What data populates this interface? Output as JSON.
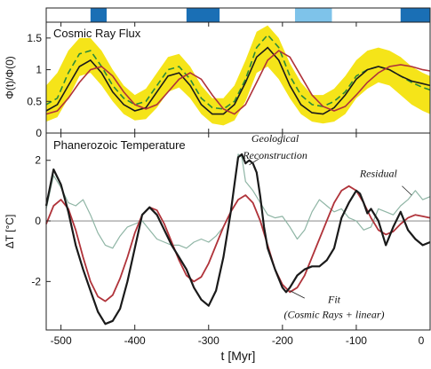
{
  "chart_data": [
    {
      "type": "line",
      "title": "Cosmic Ray Flux",
      "ylabel": "Φ(t)/Φ(0)",
      "xlabel": "",
      "xlim": [
        -520,
        0
      ],
      "ylim": [
        0,
        1.75
      ],
      "yticks": [
        "0",
        "0.5",
        "1",
        "1.5"
      ],
      "grid": false,
      "band": {
        "color": "#f5e419",
        "x": [
          -520,
          -505,
          -490,
          -475,
          -460,
          -445,
          -430,
          -415,
          -400,
          -385,
          -370,
          -355,
          -340,
          -325,
          -310,
          -295,
          -280,
          -265,
          -250,
          -235,
          -220,
          -205,
          -190,
          -175,
          -160,
          -145,
          -130,
          -115,
          -100,
          -85,
          -70,
          -55,
          -40,
          -25,
          -10,
          0
        ],
        "lower": [
          0.18,
          0.25,
          0.55,
          0.9,
          0.95,
          0.75,
          0.5,
          0.3,
          0.2,
          0.22,
          0.4,
          0.65,
          0.72,
          0.55,
          0.3,
          0.15,
          0.12,
          0.2,
          0.5,
          0.95,
          1.05,
          0.85,
          0.55,
          0.3,
          0.18,
          0.15,
          0.18,
          0.3,
          0.55,
          0.7,
          0.8,
          0.75,
          0.6,
          0.45,
          0.35,
          0.3
        ],
        "upper": [
          0.75,
          0.95,
          1.3,
          1.5,
          1.5,
          1.3,
          1.0,
          0.75,
          0.6,
          0.7,
          0.95,
          1.2,
          1.25,
          1.05,
          0.75,
          0.55,
          0.55,
          0.75,
          1.15,
          1.6,
          1.7,
          1.5,
          1.1,
          0.8,
          0.6,
          0.6,
          0.7,
          0.9,
          1.15,
          1.3,
          1.35,
          1.3,
          1.2,
          1.05,
          0.95,
          0.9
        ]
      },
      "series": [
        {
          "color": "#2a8a3a",
          "style": "dashed",
          "x": [
            -520,
            -505,
            -490,
            -475,
            -460,
            -445,
            -430,
            -415,
            -400,
            -385,
            -370,
            -355,
            -340,
            -325,
            -310,
            -295,
            -280,
            -265,
            -250,
            -235,
            -220,
            -205,
            -190,
            -175,
            -160,
            -145,
            -130,
            -115,
            -100,
            -85,
            -70,
            -55,
            -40,
            -25,
            -10,
            0
          ],
          "values": [
            0.45,
            0.55,
            0.95,
            1.25,
            1.3,
            1.05,
            0.75,
            0.55,
            0.45,
            0.5,
            0.75,
            1.0,
            1.05,
            0.85,
            0.55,
            0.4,
            0.38,
            0.5,
            0.85,
            1.35,
            1.55,
            1.35,
            0.9,
            0.6,
            0.45,
            0.42,
            0.5,
            0.65,
            0.9,
            1.0,
            1.05,
            1.0,
            0.9,
            0.8,
            0.72,
            0.68
          ]
        },
        {
          "color": "#1a1a1a",
          "style": "solid",
          "x": [
            -520,
            -505,
            -490,
            -475,
            -460,
            -445,
            -430,
            -415,
            -400,
            -385,
            -370,
            -355,
            -340,
            -325,
            -310,
            -295,
            -280,
            -265,
            -250,
            -235,
            -220,
            -205,
            -190,
            -175,
            -160,
            -145,
            -130,
            -115,
            -100,
            -85,
            -70,
            -55,
            -40,
            -25,
            -10,
            0
          ],
          "values": [
            0.35,
            0.45,
            0.75,
            1.05,
            1.15,
            0.95,
            0.65,
            0.45,
            0.35,
            0.4,
            0.65,
            0.9,
            0.95,
            0.75,
            0.45,
            0.3,
            0.3,
            0.45,
            0.8,
            1.2,
            1.35,
            1.15,
            0.75,
            0.45,
            0.32,
            0.3,
            0.4,
            0.6,
            0.85,
            1.0,
            1.05,
            1.0,
            0.9,
            0.82,
            0.78,
            0.75
          ]
        },
        {
          "color": "#b0333a",
          "style": "solid",
          "x": [
            -520,
            -505,
            -490,
            -475,
            -460,
            -445,
            -430,
            -415,
            -400,
            -385,
            -370,
            -355,
            -340,
            -325,
            -310,
            -295,
            -280,
            -265,
            -250,
            -235,
            -220,
            -205,
            -190,
            -175,
            -160,
            -145,
            -130,
            -115,
            -100,
            -85,
            -70,
            -55,
            -40,
            -25,
            -10,
            0
          ],
          "values": [
            0.3,
            0.35,
            0.55,
            0.8,
            1.0,
            1.05,
            0.9,
            0.65,
            0.45,
            0.38,
            0.45,
            0.65,
            0.85,
            0.95,
            0.85,
            0.6,
            0.38,
            0.3,
            0.45,
            0.8,
            1.15,
            1.3,
            1.2,
            0.9,
            0.6,
            0.42,
            0.35,
            0.42,
            0.6,
            0.8,
            0.95,
            1.05,
            1.08,
            1.05,
            1.0,
            0.98
          ]
        }
      ],
      "top_bar": {
        "segments": [
          {
            "from": -520,
            "to": -460,
            "color": "#ffffff"
          },
          {
            "from": -460,
            "to": -438,
            "color": "#1a6fb5"
          },
          {
            "from": -438,
            "to": -330,
            "color": "#ffffff"
          },
          {
            "from": -330,
            "to": -285,
            "color": "#1a6fb5"
          },
          {
            "from": -285,
            "to": -183,
            "color": "#ffffff"
          },
          {
            "from": -183,
            "to": -133,
            "color": "#7ec3ea"
          },
          {
            "from": -133,
            "to": -40,
            "color": "#ffffff"
          },
          {
            "from": -40,
            "to": 0,
            "color": "#1a6fb5"
          }
        ]
      }
    },
    {
      "type": "line",
      "title": "Phanerozoic Temperature",
      "ylabel": "ΔT [°C]",
      "xlabel": "t [Myr]",
      "xlim": [
        -520,
        0
      ],
      "ylim": [
        -3.6,
        2.9
      ],
      "xticks": [
        "-500",
        "-400",
        "-300",
        "-200",
        "-100",
        "0"
      ],
      "yticks": [
        "-2",
        "0",
        "2"
      ],
      "zero_line": true,
      "annotations": [
        {
          "text": "Geological",
          "x": -210,
          "y": 2.6
        },
        {
          "text": "Reconstruction",
          "x": -210,
          "y": 2.05
        },
        {
          "text": "Residual",
          "x": -70,
          "y": 1.45
        },
        {
          "text": "Fit",
          "x": -130,
          "y": -2.7
        },
        {
          "text": "(Cosmic Rays + linear)",
          "x": -130,
          "y": -3.2
        }
      ],
      "series": [
        {
          "name": "Geological Reconstruction",
          "color": "#1a1a1a",
          "width": 2.2,
          "x": [
            -520,
            -510,
            -500,
            -490,
            -480,
            -470,
            -460,
            -450,
            -440,
            -430,
            -420,
            -410,
            -400,
            -390,
            -380,
            -370,
            -360,
            -350,
            -340,
            -330,
            -320,
            -310,
            -300,
            -290,
            -280,
            -270,
            -265,
            -260,
            -255,
            -250,
            -245,
            -240,
            -235,
            -230,
            -225,
            -220,
            -210,
            -200,
            -195,
            -190,
            -180,
            -170,
            -160,
            -150,
            -140,
            -130,
            -120,
            -110,
            -100,
            -95,
            -90,
            -85,
            -80,
            -70,
            -60,
            -50,
            -40,
            -30,
            -20,
            -10,
            0
          ],
          "values": [
            0.5,
            1.7,
            1.2,
            0.3,
            -0.8,
            -1.6,
            -2.3,
            -3.0,
            -3.4,
            -3.3,
            -2.9,
            -2.0,
            -0.9,
            0.2,
            0.45,
            0.2,
            -0.3,
            -0.8,
            -1.2,
            -1.6,
            -2.2,
            -2.6,
            -2.8,
            -2.3,
            -1.2,
            0.3,
            1.2,
            2.1,
            2.2,
            1.9,
            2.0,
            1.9,
            1.6,
            0.8,
            -0.2,
            -0.9,
            -1.6,
            -2.2,
            -2.35,
            -2.2,
            -1.8,
            -1.6,
            -1.5,
            -1.5,
            -1.3,
            -0.9,
            0.1,
            0.6,
            1.0,
            0.9,
            0.6,
            0.25,
            0.4,
            0.0,
            -0.8,
            -0.2,
            0.3,
            -0.3,
            -0.6,
            -0.8,
            -0.7
          ]
        },
        {
          "name": "Residual",
          "color": "#8fb5a5",
          "width": 1.2,
          "x": [
            -520,
            -510,
            -500,
            -490,
            -480,
            -470,
            -460,
            -450,
            -440,
            -430,
            -420,
            -410,
            -400,
            -390,
            -380,
            -370,
            -360,
            -350,
            -340,
            -330,
            -320,
            -310,
            -300,
            -290,
            -280,
            -270,
            -265,
            -260,
            -255,
            -250,
            -240,
            -230,
            -220,
            -210,
            -200,
            -190,
            -180,
            -170,
            -160,
            -150,
            -140,
            -130,
            -120,
            -110,
            -100,
            -90,
            -80,
            -70,
            -60,
            -50,
            -40,
            -30,
            -20,
            -10,
            0
          ],
          "values": [
            0.4,
            1.5,
            1.1,
            0.6,
            0.5,
            0.7,
            0.2,
            -0.4,
            -0.8,
            -0.9,
            -0.5,
            -0.2,
            -0.1,
            0.0,
            -0.3,
            -0.6,
            -0.7,
            -0.8,
            -0.8,
            -0.9,
            -0.7,
            -0.6,
            -0.7,
            -0.5,
            -0.2,
            0.3,
            1.2,
            2.2,
            2.1,
            1.3,
            1.0,
            0.6,
            0.2,
            0.1,
            0.15,
            -0.2,
            -0.6,
            -0.3,
            0.3,
            0.7,
            0.5,
            0.3,
            0.4,
            0.1,
            0.0,
            -0.3,
            -0.2,
            0.4,
            0.3,
            0.2,
            0.5,
            0.7,
            1.0,
            0.7,
            0.8
          ]
        },
        {
          "name": "Fit",
          "color": "#b0333a",
          "width": 1.8,
          "x": [
            -520,
            -510,
            -500,
            -490,
            -480,
            -470,
            -460,
            -450,
            -440,
            -430,
            -420,
            -410,
            -400,
            -390,
            -380,
            -370,
            -360,
            -350,
            -340,
            -330,
            -320,
            -310,
            -300,
            -290,
            -280,
            -270,
            -260,
            -250,
            -240,
            -230,
            -220,
            -210,
            -200,
            -190,
            -180,
            -170,
            -160,
            -150,
            -140,
            -130,
            -120,
            -110,
            -100,
            -90,
            -80,
            -70,
            -60,
            -50,
            -40,
            -30,
            -20,
            -10,
            0
          ],
          "values": [
            -0.1,
            0.5,
            0.7,
            0.4,
            -0.3,
            -1.2,
            -2.0,
            -2.5,
            -2.65,
            -2.45,
            -1.9,
            -1.2,
            -0.4,
            0.2,
            0.45,
            0.35,
            -0.1,
            -0.7,
            -1.3,
            -1.8,
            -2.0,
            -1.85,
            -1.4,
            -0.8,
            -0.2,
            0.3,
            0.7,
            0.85,
            0.6,
            0.0,
            -0.8,
            -1.6,
            -2.1,
            -2.35,
            -2.2,
            -1.8,
            -1.2,
            -0.6,
            0.0,
            0.6,
            1.0,
            1.15,
            1.0,
            0.6,
            0.1,
            -0.3,
            -0.45,
            -0.35,
            -0.1,
            0.1,
            0.2,
            0.15,
            0.1
          ]
        }
      ]
    }
  ]
}
